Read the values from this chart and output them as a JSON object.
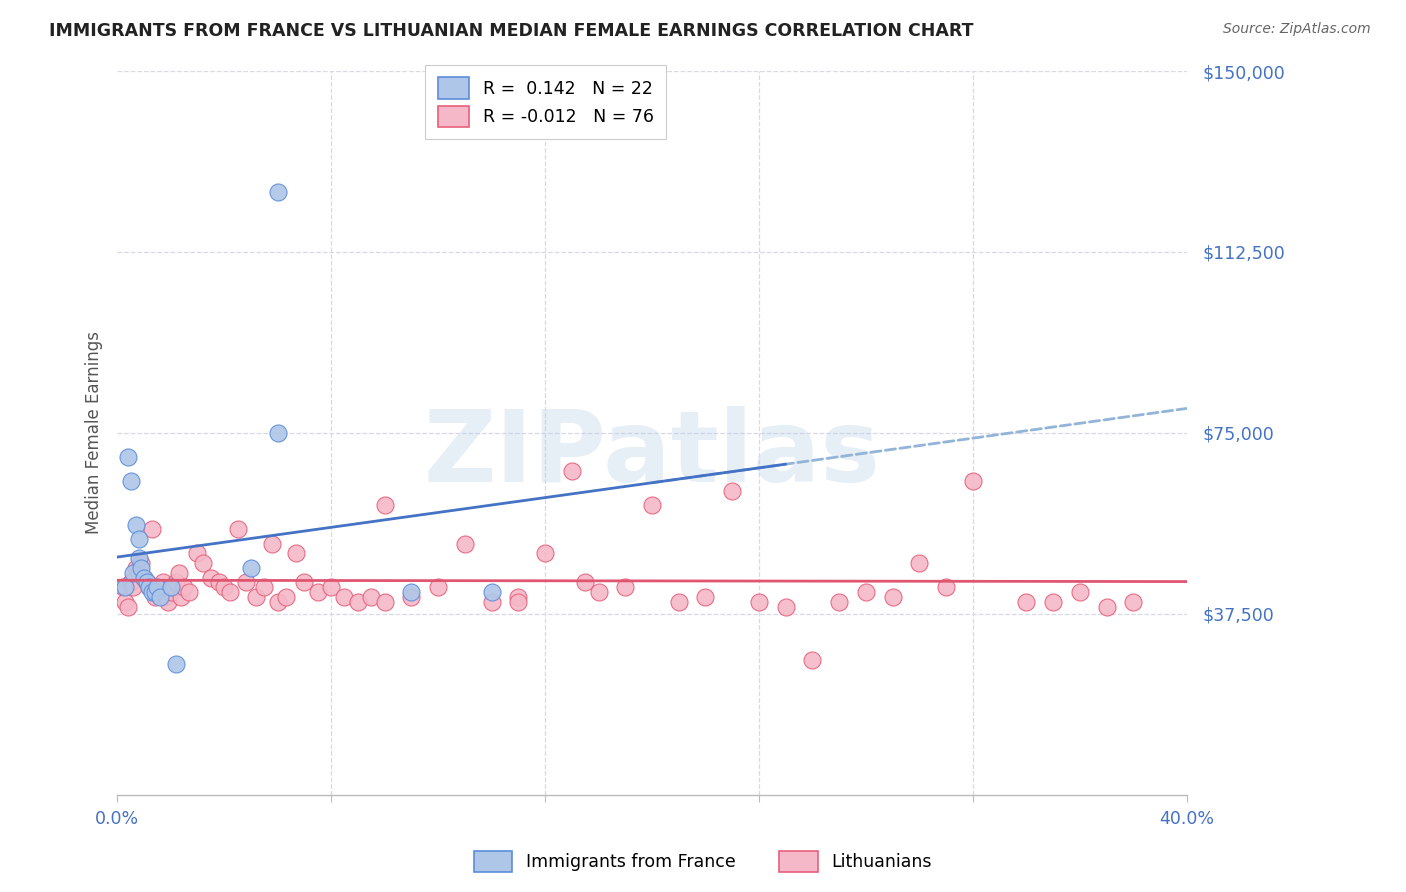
{
  "title": "IMMIGRANTS FROM FRANCE VS LITHUANIAN MEDIAN FEMALE EARNINGS CORRELATION CHART",
  "source": "Source: ZipAtlas.com",
  "ylabel": "Median Female Earnings",
  "xlim": [
    0.0,
    0.4
  ],
  "ylim": [
    0,
    150000
  ],
  "watermark_text": "ZIPatlas",
  "france_color": "#aec6e8",
  "lithuanian_color": "#f4b8c8",
  "france_edge_color": "#5b8dd9",
  "lithuanian_edge_color": "#e8607a",
  "france_line_color": "#4472c4",
  "lithuanian_line_color": "#e05570",
  "dashed_line_color": "#92b4d8",
  "bg_color": "#ffffff",
  "grid_color": "#d8d8e8",
  "axis_label_color": "#4472c4",
  "title_color": "#222222",
  "source_color": "#666666",
  "ylabel_color": "#555555",
  "ytick_vals": [
    37500,
    75000,
    112500,
    150000
  ],
  "ytick_labels": [
    "$37,500",
    "$75,000",
    "$112,500",
    "$150,000"
  ],
  "xtick_vals": [
    0.0,
    0.08,
    0.16,
    0.24,
    0.32,
    0.4
  ],
  "xtick_labels": [
    "0.0%",
    "",
    "",
    "",
    "",
    "40.0%"
  ],
  "france_N": 22,
  "lithuanian_N": 76,
  "france_R": 0.142,
  "lithuanian_R": -0.012,
  "france_x": [
    0.003,
    0.004,
    0.005,
    0.006,
    0.007,
    0.008,
    0.008,
    0.009,
    0.01,
    0.011,
    0.012,
    0.013,
    0.014,
    0.015,
    0.016,
    0.02,
    0.022,
    0.05,
    0.06,
    0.11,
    0.14,
    0.06
  ],
  "france_y": [
    43000,
    70000,
    65000,
    46000,
    56000,
    49000,
    53000,
    47000,
    45000,
    44000,
    43000,
    42000,
    42000,
    43000,
    41000,
    43000,
    27000,
    47000,
    75000,
    42000,
    42000,
    125000
  ],
  "lithuanian_x": [
    0.002,
    0.003,
    0.004,
    0.005,
    0.006,
    0.007,
    0.008,
    0.009,
    0.01,
    0.011,
    0.012,
    0.013,
    0.014,
    0.015,
    0.016,
    0.017,
    0.018,
    0.019,
    0.02,
    0.021,
    0.022,
    0.023,
    0.024,
    0.025,
    0.027,
    0.03,
    0.032,
    0.035,
    0.038,
    0.04,
    0.042,
    0.045,
    0.048,
    0.052,
    0.055,
    0.058,
    0.06,
    0.063,
    0.067,
    0.07,
    0.075,
    0.08,
    0.085,
    0.09,
    0.095,
    0.1,
    0.11,
    0.12,
    0.13,
    0.14,
    0.15,
    0.16,
    0.17,
    0.175,
    0.18,
    0.19,
    0.2,
    0.21,
    0.22,
    0.23,
    0.24,
    0.25,
    0.26,
    0.27,
    0.28,
    0.29,
    0.3,
    0.32,
    0.34,
    0.35,
    0.36,
    0.37,
    0.38,
    0.31,
    0.15,
    0.1
  ],
  "lithuanian_y": [
    43000,
    40000,
    39000,
    44000,
    43000,
    47000,
    46000,
    48000,
    45000,
    44000,
    43000,
    55000,
    41000,
    43000,
    42000,
    44000,
    41000,
    40000,
    42000,
    43000,
    44000,
    46000,
    41000,
    43000,
    42000,
    50000,
    48000,
    45000,
    44000,
    43000,
    42000,
    55000,
    44000,
    41000,
    43000,
    52000,
    40000,
    41000,
    50000,
    44000,
    42000,
    43000,
    41000,
    40000,
    41000,
    60000,
    41000,
    43000,
    52000,
    40000,
    41000,
    50000,
    67000,
    44000,
    42000,
    43000,
    60000,
    40000,
    41000,
    63000,
    40000,
    39000,
    28000,
    40000,
    42000,
    41000,
    48000,
    65000,
    40000,
    40000,
    42000,
    39000,
    40000,
    43000,
    40000,
    40000
  ]
}
